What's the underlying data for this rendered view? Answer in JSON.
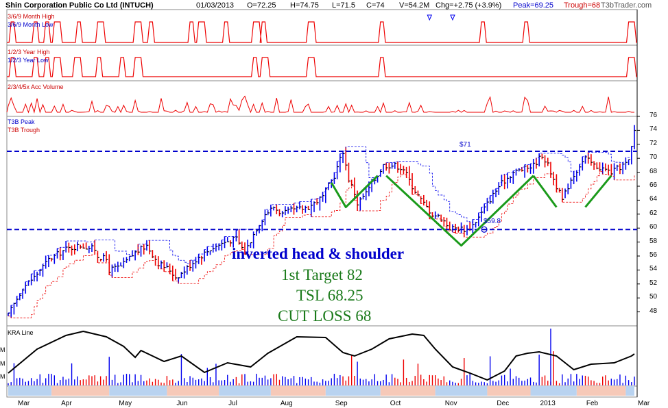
{
  "header": {
    "title": "Shin Corporation Public Co Ltd (INTUCH)",
    "date": "01/03/2013",
    "open": "O=72.25",
    "high": "H=74.75",
    "low": "L=71.5",
    "close": "C=74",
    "volume": "V=54.2M",
    "change": "Chg=+2.75 (+3.9%)",
    "peak": "Peak=69.25",
    "trough": "Trough=68",
    "brand": "T3bTrader.com"
  },
  "panels": {
    "month_high": "3/6/9 Month High",
    "month_low": "3/6/9 Month Low",
    "year_high": "1/2/3 Year High",
    "year_low": "1/2/3 Year Low",
    "acc_volume": "2/3/4/5x Acc Volume",
    "peak": "T3B Peak",
    "trough": "T3B Trough",
    "kra": "KRA Line"
  },
  "annotations": {
    "pattern": "inverted head & shoulder",
    "target": "1st  Target  82",
    "tsl": "TSL 68.25",
    "cut_loss": "CUT LOSS  68",
    "resistance_label": "$71",
    "support_label": "$59.8"
  },
  "vol_axis_labels": [
    "M",
    "M",
    "M"
  ],
  "colors": {
    "up": "#0000ee",
    "down": "#ee0000",
    "close_tick": "#000000",
    "level_line": "#0000cc",
    "pattern_line": "#1a9a1a",
    "annotation_blue": "#0000cc",
    "annotation_green": "#1a7a1a",
    "signal_red": "#ee0000",
    "month_band_a": "#b9d3f0",
    "month_band_b": "#f6c9b8"
  },
  "chart_data": {
    "type": "candlestick",
    "y_axis": {
      "min": 46,
      "max": 76,
      "ticks": [
        48,
        50,
        52,
        54,
        56,
        58,
        60,
        62,
        64,
        66,
        68,
        70,
        72,
        74,
        76
      ]
    },
    "x_axis": {
      "months": [
        "Mar",
        "Apr",
        "May",
        "Jun",
        "Jul",
        "Aug",
        "Sep",
        "Oct",
        "Nov",
        "Dec",
        "2013",
        "Feb",
        "Mar"
      ]
    },
    "levels": [
      {
        "label": "$71",
        "value": 71
      },
      {
        "label": "$59.8",
        "value": 59.8
      }
    ],
    "close_path": [
      [
        0,
        47.5
      ],
      [
        5,
        51.5
      ],
      [
        9,
        53
      ],
      [
        14,
        55.5
      ],
      [
        20,
        57
      ],
      [
        25,
        57.5
      ],
      [
        30,
        57
      ],
      [
        31,
        56
      ],
      [
        34,
        55.5
      ],
      [
        35,
        54
      ],
      [
        39,
        54.5
      ],
      [
        44,
        56.5
      ],
      [
        48,
        57.5
      ],
      [
        52,
        55
      ],
      [
        56,
        54
      ],
      [
        58,
        53
      ],
      [
        60,
        53.5
      ],
      [
        65,
        55.5
      ],
      [
        70,
        57
      ],
      [
        75,
        58
      ],
      [
        79,
        58.5
      ],
      [
        82,
        56.5
      ],
      [
        86,
        60
      ],
      [
        89,
        62
      ],
      [
        92,
        63
      ],
      [
        95,
        62
      ],
      [
        98,
        62.5
      ],
      [
        104,
        63
      ],
      [
        109,
        64.5
      ],
      [
        113,
        67.5
      ],
      [
        116,
        71
      ],
      [
        118,
        67
      ],
      [
        120,
        65
      ],
      [
        121,
        63.5
      ],
      [
        124,
        65
      ],
      [
        127,
        67
      ],
      [
        130,
        69
      ],
      [
        134,
        69
      ],
      [
        137,
        68.5
      ],
      [
        140,
        66
      ],
      [
        143,
        64
      ],
      [
        147,
        62
      ],
      [
        150,
        61.5
      ],
      [
        153,
        60
      ],
      [
        156,
        60
      ],
      [
        159,
        59.8
      ],
      [
        161,
        60.5
      ],
      [
        163,
        61.5
      ],
      [
        166,
        63.5
      ],
      [
        170,
        66
      ],
      [
        175,
        68
      ],
      [
        179,
        68.5
      ],
      [
        182,
        69
      ],
      [
        185,
        70.5
      ],
      [
        187,
        69
      ],
      [
        189,
        67
      ],
      [
        191,
        65
      ],
      [
        192,
        64
      ],
      [
        195,
        67
      ],
      [
        198,
        69
      ],
      [
        200,
        70
      ],
      [
        203,
        69
      ],
      [
        206,
        68.5
      ],
      [
        209,
        68
      ],
      [
        213,
        69
      ],
      [
        215,
        69.5
      ],
      [
        216,
        71.5
      ],
      [
        217,
        74
      ]
    ],
    "peak_trough_levels": {
      "peak": 69.25,
      "trough": 68
    },
    "last_bar": {
      "date": "01/03/2013",
      "open": 72.25,
      "high": 74.75,
      "low": 71.5,
      "close": 74,
      "volume": "54.2M",
      "change": 2.75,
      "change_pct": 3.9
    }
  }
}
